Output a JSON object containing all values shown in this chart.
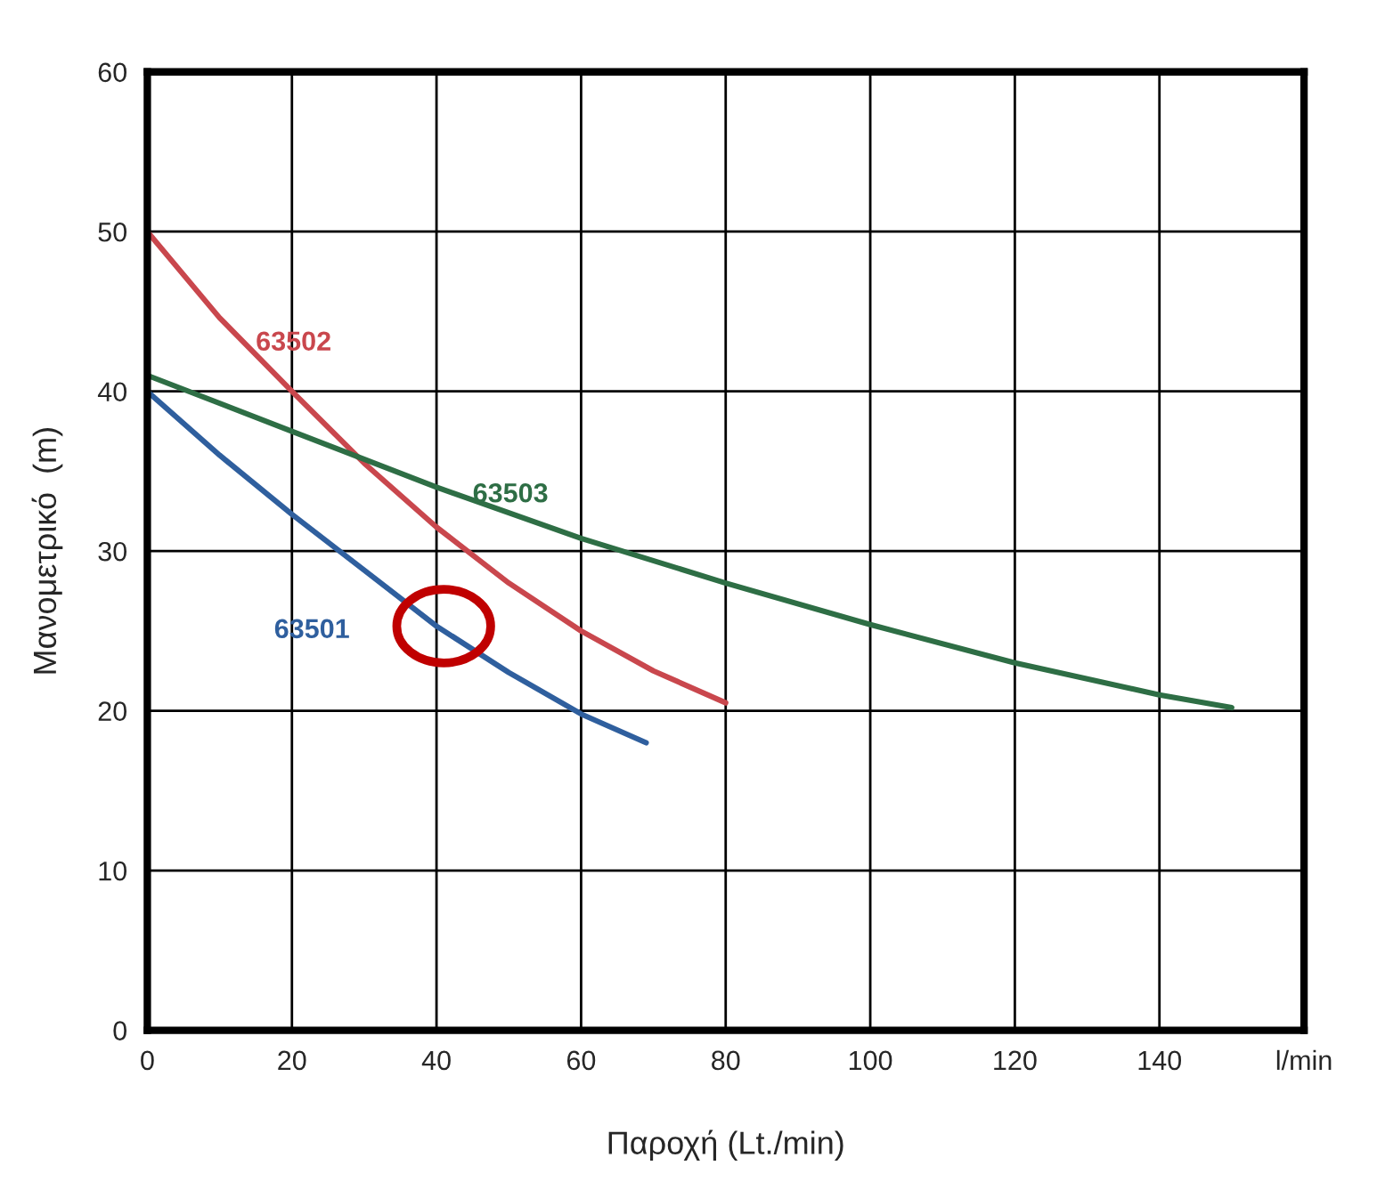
{
  "chart_data": {
    "type": "line",
    "xlabel": "Παροχή (Lt./min)",
    "ylabel": "Μανομετρικό  (m)",
    "xlim": [
      0,
      160
    ],
    "xticks": [
      0,
      20,
      40,
      60,
      80,
      100,
      120,
      140,
      {
        "value": 160,
        "label": "l/min"
      }
    ],
    "ylim": [
      0,
      60
    ],
    "yticks": [
      0,
      10,
      20,
      30,
      40,
      50,
      60
    ],
    "grid": true,
    "legend": false,
    "marker": "none",
    "line_style": "solid",
    "series": [
      {
        "name": "63501",
        "color": "#2f5f9e",
        "x": [
          0,
          10,
          20,
          30,
          40,
          50,
          60,
          69
        ],
        "values": [
          40,
          36,
          32.3,
          28.8,
          25.3,
          22.4,
          19.8,
          18
        ]
      },
      {
        "name": "63502",
        "color": "#c9474d",
        "x": [
          0,
          10,
          20,
          30,
          40,
          50,
          60,
          70,
          80
        ],
        "values": [
          50,
          44.6,
          40,
          35.5,
          31.5,
          28,
          25,
          22.5,
          20.5
        ]
      },
      {
        "name": "63503",
        "color": "#2e6e45",
        "x": [
          0,
          20,
          40,
          60,
          80,
          100,
          120,
          140,
          150
        ],
        "values": [
          41,
          37.5,
          34,
          30.8,
          28,
          25.4,
          23,
          21,
          20.2
        ]
      }
    ]
  }
}
